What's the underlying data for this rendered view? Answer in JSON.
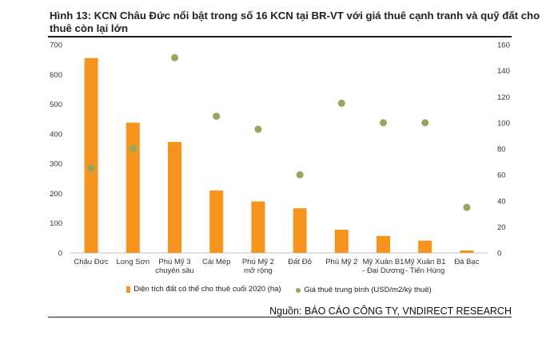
{
  "title": "Hình 13: KCN Châu Đức nổi bật trong số 16 KCN tại BR-VT với giá thuê cạnh tranh và quỹ đất cho thuê còn lại lớn",
  "source": "Nguồn: BÁO CÁO CÔNG TY, VNDIRECT RESEARCH",
  "colors": {
    "bar": "#f7941d",
    "dot": "#92a85c"
  },
  "chart_data": {
    "type": "bar",
    "categories": [
      [
        "Châu Đức"
      ],
      [
        "Long Sơn"
      ],
      [
        "Phú Mỹ 3",
        "chuyên sâu"
      ],
      [
        "Cái Mép"
      ],
      [
        "Phú Mỹ 2",
        "mở rộng"
      ],
      [
        "Đất Đỏ"
      ],
      [
        "Phú Mỹ 2"
      ],
      [
        "Mỹ Xuân B1",
        "- Đại Dương"
      ],
      [
        "Mỹ Xuân B1",
        "- Tiến Hùng"
      ],
      [
        "Đá Bạc"
      ]
    ],
    "series": [
      {
        "name": "Diện tích đất có thể cho thuê cuối 2020 (ha)",
        "kind": "bar",
        "axis": "left",
        "values": [
          655,
          438,
          373,
          210,
          173,
          150,
          78,
          57,
          41,
          8
        ]
      },
      {
        "name": "Giá thuê trung bình (USD/m2/kỳ thuê)",
        "kind": "scatter",
        "axis": "right",
        "values": [
          65,
          80,
          150,
          105,
          95,
          60,
          115,
          100,
          100,
          35
        ]
      }
    ],
    "left_axis": {
      "ylim": [
        0,
        700
      ],
      "ticks": [
        0,
        100,
        200,
        300,
        400,
        500,
        600,
        700
      ]
    },
    "right_axis": {
      "ylim": [
        0,
        160
      ],
      "ticks": [
        0,
        20,
        40,
        60,
        80,
        100,
        120,
        140,
        160
      ]
    },
    "grid": false,
    "legend_position": "bottom"
  }
}
